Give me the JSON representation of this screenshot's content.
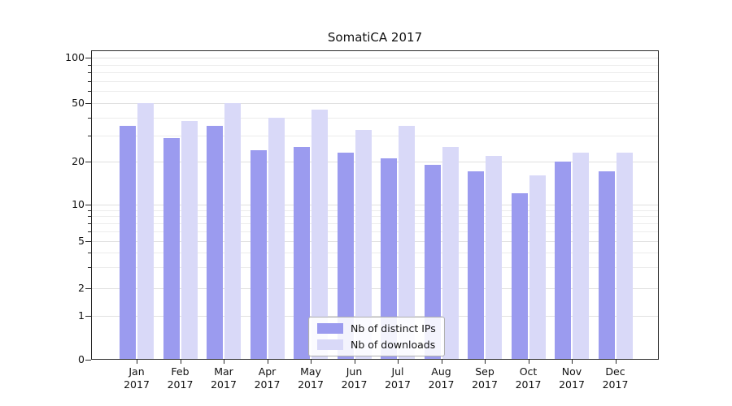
{
  "chart_data": {
    "type": "bar",
    "title": "SomatiCA 2017",
    "categories": [
      "Jan 2017",
      "Feb 2017",
      "Mar 2017",
      "Apr 2017",
      "May 2017",
      "Jun 2017",
      "Jul 2017",
      "Aug 2017",
      "Sep 2017",
      "Oct 2017",
      "Nov 2017",
      "Dec 2017"
    ],
    "series": [
      {
        "name": "Nb of distinct IPs",
        "color": "#9b9bef",
        "values": [
          35,
          29,
          35,
          24,
          25,
          23,
          21,
          19,
          17,
          12,
          20,
          17
        ]
      },
      {
        "name": "Nb of downloads",
        "color": "#d9d9f8",
        "values": [
          50,
          38,
          50,
          40,
          45,
          33,
          35,
          25,
          22,
          16,
          23,
          23
        ]
      }
    ],
    "yticks": [
      0,
      1,
      2,
      5,
      10,
      20,
      50,
      100
    ],
    "ylim": [
      0,
      100
    ],
    "yscale": "log",
    "grid": true,
    "legend_position": "lower center inside plot",
    "grid_color_major": "#e0e0e0",
    "grid_color_minor": "#ececec"
  }
}
